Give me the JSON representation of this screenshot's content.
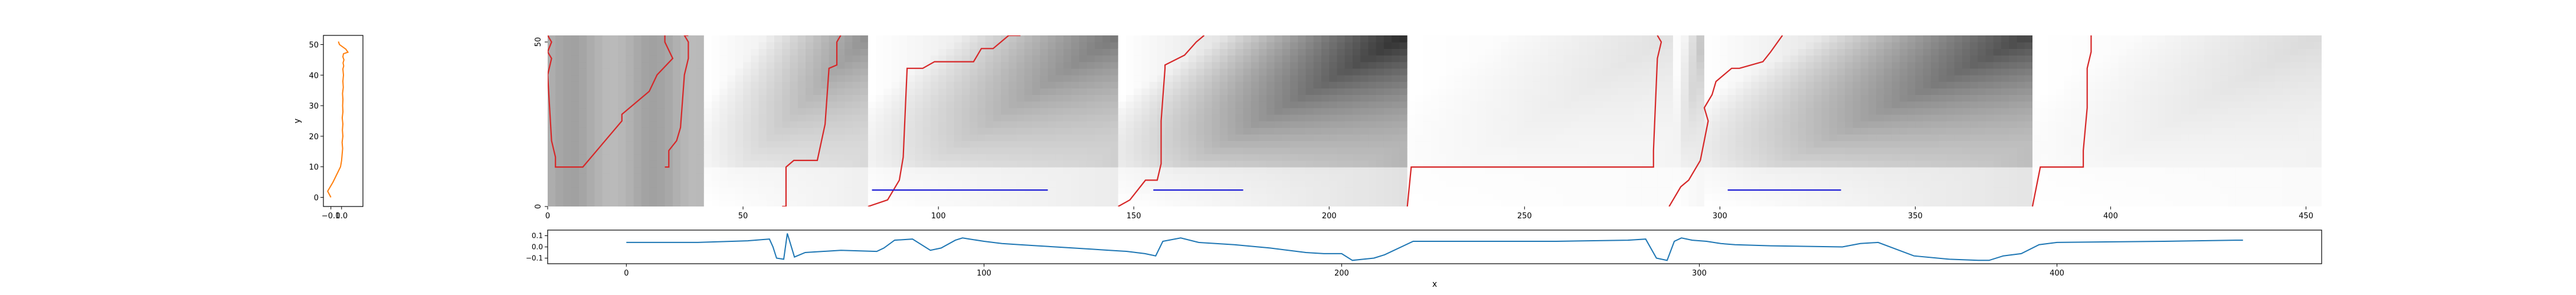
{
  "chart_data": [
    {
      "type": "line",
      "name": "left-profile",
      "xlabel": "",
      "ylabel": "y",
      "xlim": [
        -0.17,
        0.2
      ],
      "ylim": [
        -3,
        53
      ],
      "x_ticks": [
        -0.1,
        0.0
      ],
      "x_tick_labels": [
        "−0.1",
        "0.0"
      ],
      "y_ticks": [
        0,
        10,
        20,
        30,
        40,
        50
      ],
      "y_tick_labels": [
        "0",
        "10",
        "20",
        "30",
        "40",
        "50"
      ],
      "line_color": "#ff7f0e",
      "series": [
        {
          "x": [
            -0.1,
            -0.13,
            -0.08,
            -0.01,
            0.0,
            0.005,
            0.01,
            0.005,
            0.012,
            0.008,
            0.012,
            0.006,
            0.013,
            0.01,
            0.013,
            0.009,
            0.016,
            0.012,
            0.018,
            0.012,
            0.02,
            0.014,
            0.022,
            0.012,
            0.018,
            0.06,
            0.04,
            -0.02,
            -0.03
          ],
          "y": [
            0,
            2,
            5,
            10,
            12,
            14,
            16,
            18,
            20,
            22,
            24,
            26,
            28,
            30,
            32,
            34,
            36,
            38,
            40,
            42,
            43,
            44,
            45,
            46,
            47,
            47.5,
            48.5,
            50,
            51
          ]
        }
      ]
    },
    {
      "type": "heatmap",
      "name": "main-heatmap",
      "xlim": [
        0,
        454
      ],
      "ylim": [
        0,
        52
      ],
      "x_ticks": [
        0,
        50,
        100,
        150,
        200,
        250,
        300,
        350,
        400,
        450
      ],
      "x_tick_labels": [
        "0",
        "50",
        "100",
        "150",
        "200",
        "250",
        "300",
        "350",
        "400",
        "450"
      ],
      "y_ticks": [
        0,
        50
      ],
      "y_tick_labels": [
        "0",
        "50"
      ],
      "colormap": "gray_r",
      "segment_boundaries": [
        0,
        40,
        82,
        146,
        220,
        287,
        295,
        380,
        454
      ],
      "red_paths": [
        {
          "x": [
            0,
            1,
            0,
            1,
            0,
            1,
            2,
            2,
            5,
            9,
            19,
            19,
            26,
            28,
            32,
            30,
            30,
            30
          ],
          "y": [
            52,
            50,
            47,
            45,
            40,
            20,
            15,
            12,
            12,
            12,
            26,
            28,
            35,
            40,
            45,
            50,
            52,
            52
          ]
        },
        {
          "x": [
            30,
            31,
            31,
            33,
            34,
            35,
            36,
            36,
            35,
            36
          ],
          "y": [
            12,
            12,
            17,
            20,
            24,
            40,
            45,
            50,
            52,
            52
          ]
        },
        {
          "x": [
            60,
            61,
            61,
            63,
            69,
            71,
            72,
            74,
            74,
            75
          ],
          "y": [
            0,
            0,
            12,
            14,
            14,
            25,
            42,
            43,
            50,
            52
          ]
        },
        {
          "x": [
            82,
            87,
            90,
            91,
            92,
            96,
            99,
            109,
            111,
            114,
            118,
            121,
            119
          ],
          "y": [
            0,
            2,
            8,
            15,
            42,
            42,
            44,
            44,
            48,
            48,
            52,
            52,
            52
          ]
        },
        {
          "x": [
            146,
            149,
            153,
            156,
            157,
            157,
            158,
            158,
            163,
            166,
            168
          ],
          "y": [
            0,
            2,
            8,
            8,
            13,
            26,
            42,
            43,
            46,
            50,
            52
          ]
        },
        {
          "x": [
            220,
            221,
            222,
            283,
            283,
            284,
            285,
            284
          ],
          "y": [
            0,
            12,
            12,
            12,
            17,
            45,
            50,
            52
          ]
        },
        {
          "x": [
            287,
            289,
            290,
            292,
            294,
            295
          ],
          "y": [
            0,
            4,
            6,
            8,
            12,
            14
          ]
        },
        {
          "x": [
            295,
            297,
            296,
            298,
            299,
            301,
            303,
            305,
            311,
            313,
            316
          ],
          "y": [
            14,
            26,
            30,
            34,
            38,
            40,
            42,
            42,
            44,
            47,
            52
          ]
        },
        {
          "x": [
            380,
            382,
            393,
            393,
            394,
            394,
            395,
            395
          ],
          "y": [
            0,
            12,
            12,
            17,
            30,
            42,
            47,
            52
          ]
        }
      ],
      "blue_segments": [
        {
          "x": [
            83,
            128
          ],
          "y": [
            5,
            5
          ]
        },
        {
          "x": [
            155,
            178
          ],
          "y": [
            5,
            5
          ]
        },
        {
          "x": [
            302,
            331
          ],
          "y": [
            5,
            5
          ]
        }
      ]
    },
    {
      "type": "line",
      "name": "bottom-profile",
      "xlabel": "x",
      "ylabel": "",
      "xlim": [
        -22,
        474
      ],
      "ylim": [
        -0.15,
        0.15
      ],
      "x_ticks": [
        0,
        100,
        200,
        300,
        400
      ],
      "x_tick_labels": [
        "0",
        "100",
        "200",
        "300",
        "400"
      ],
      "y_ticks": [
        -0.1,
        0.0,
        0.1
      ],
      "y_tick_labels": [
        "−0.1",
        "0.0",
        "0.1"
      ],
      "line_color": "#1f77b4",
      "series": [
        {
          "x": [
            0,
            20,
            34,
            36,
            38,
            40,
            41,
            42,
            44,
            45,
            47,
            50,
            60,
            70,
            72,
            75,
            80,
            85,
            88,
            92,
            94,
            96,
            100,
            105,
            110,
            115,
            120,
            125,
            130,
            135,
            140,
            145,
            148,
            150,
            155,
            160,
            170,
            180,
            190,
            195,
            200,
            203,
            206,
            209,
            212,
            220,
            240,
            260,
            280,
            285,
            288,
            291,
            293,
            295,
            298,
            302,
            306,
            310,
            320,
            340,
            345,
            350,
            360,
            370,
            378,
            381,
            385,
            390,
            395,
            400,
            430,
            450,
            452
          ],
          "y": [
            0.04,
            0.04,
            0.055,
            0.06,
            0.065,
            0.07,
            0.0,
            -0.1,
            -0.11,
            0.12,
            -0.09,
            -0.05,
            -0.03,
            -0.04,
            -0.01,
            0.06,
            0.07,
            -0.03,
            -0.01,
            0.06,
            0.08,
            0.07,
            0.05,
            0.03,
            0.02,
            0.01,
            0.0,
            -0.01,
            -0.02,
            -0.03,
            -0.04,
            -0.06,
            -0.08,
            0.05,
            0.08,
            0.04,
            0.02,
            -0.01,
            -0.05,
            -0.06,
            -0.06,
            -0.12,
            -0.11,
            -0.1,
            -0.07,
            0.05,
            0.05,
            0.05,
            0.06,
            0.07,
            -0.1,
            -0.12,
            0.05,
            0.08,
            0.06,
            0.05,
            0.03,
            0.02,
            0.01,
            0.0,
            0.03,
            0.04,
            -0.08,
            -0.11,
            -0.12,
            -0.12,
            -0.08,
            -0.06,
            0.02,
            0.04,
            0.05,
            0.06,
            0.06
          ]
        }
      ]
    }
  ]
}
